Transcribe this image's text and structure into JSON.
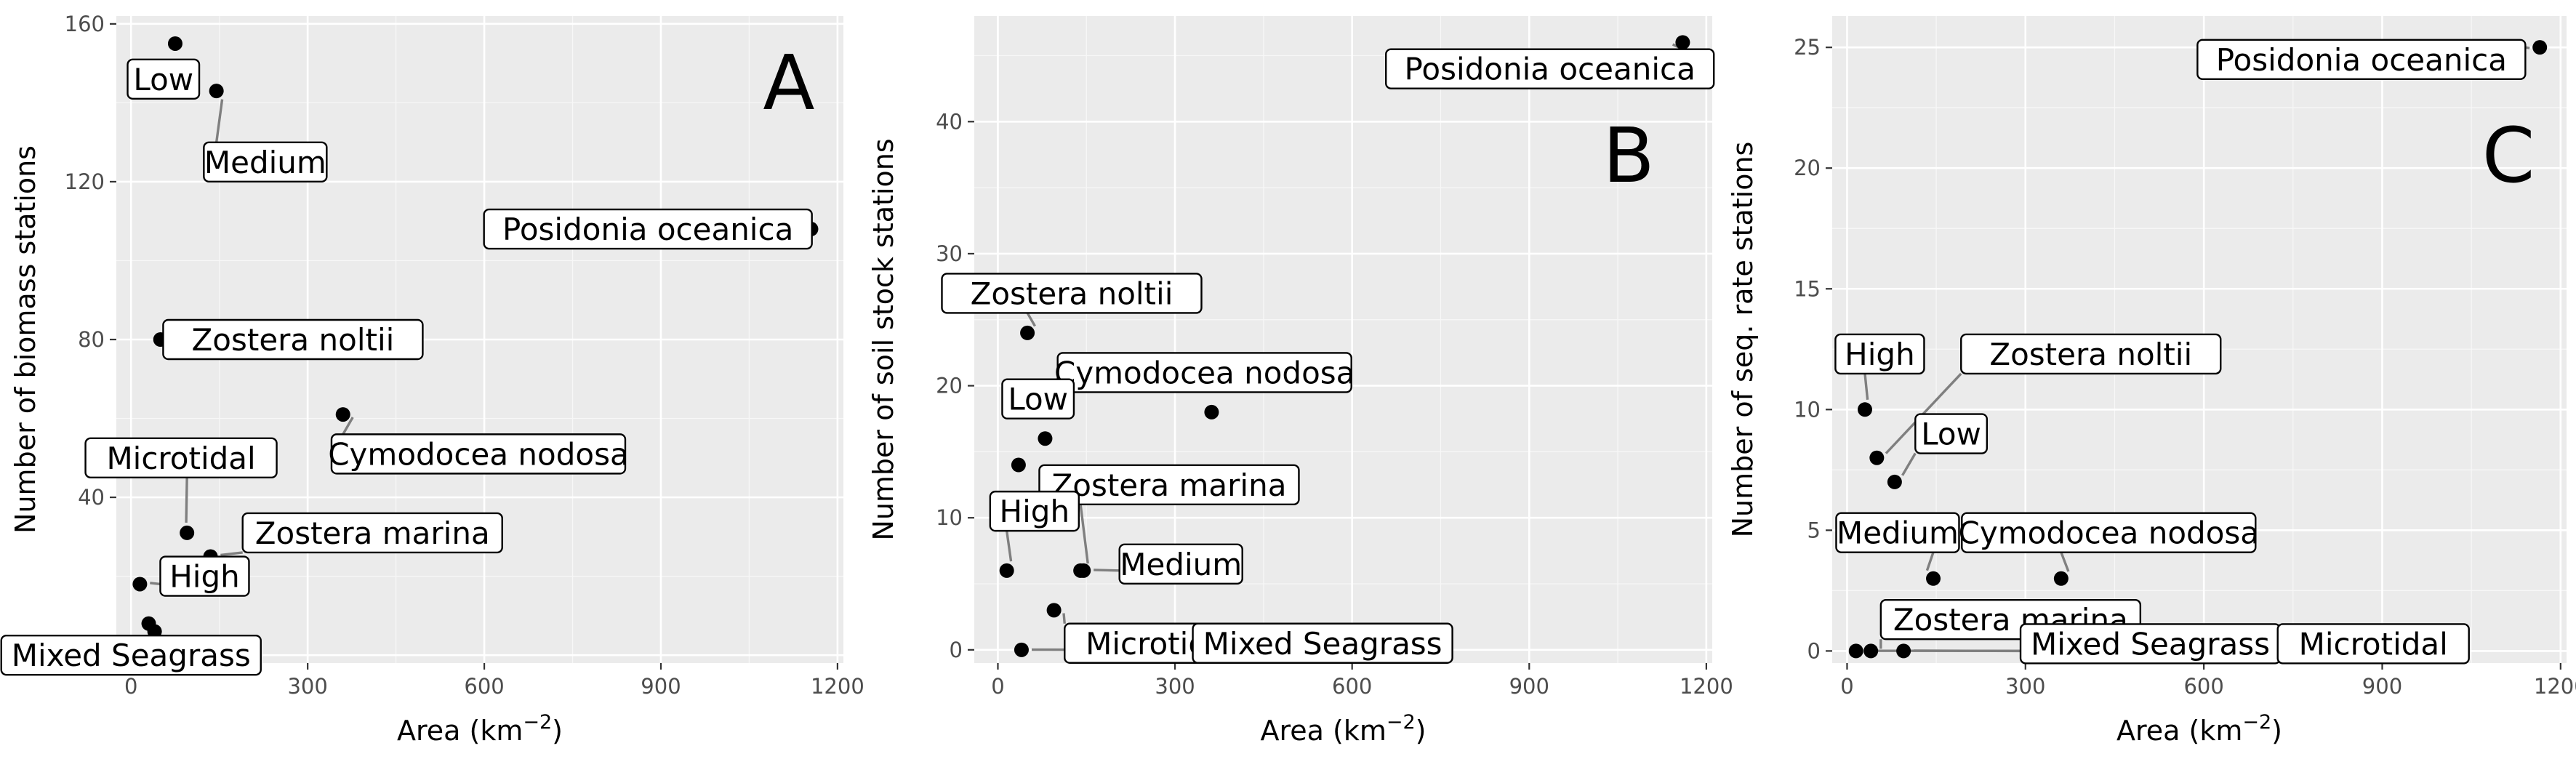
{
  "xlabel": "Area (km",
  "xlabel_exponent": "−2",
  "xlabel_close": ")",
  "chart_data": [
    {
      "type": "scatter",
      "panel_letter": "A",
      "ylabel": "Number of biomass stations",
      "xlim": [
        -25,
        1210
      ],
      "ylim": [
        -2,
        162
      ],
      "xticks": [
        0,
        300,
        600,
        900,
        1200
      ],
      "yticks": [
        0,
        40,
        80,
        120,
        160
      ],
      "grid": true,
      "points": [
        {
          "label": "Low",
          "x": 75,
          "y": 155,
          "lx": 55,
          "ly": 146
        },
        {
          "label": "Medium",
          "x": 145,
          "y": 143,
          "lx": 228,
          "ly": 125
        },
        {
          "label": "Posidonia oceanica",
          "x": 1155,
          "y": 108,
          "lx": 878,
          "ly": 108
        },
        {
          "label": "Zostera noltii",
          "x": 50,
          "y": 80,
          "lx": 275,
          "ly": 80
        },
        {
          "label": "Cymodocea nodosa",
          "x": 360,
          "y": 61,
          "lx": 590,
          "ly": 51
        },
        {
          "label": "Microtidal",
          "x": 95,
          "y": 31,
          "lx": 85,
          "ly": 50
        },
        {
          "label": "Zostera marina",
          "x": 135,
          "y": 25,
          "lx": 410,
          "ly": 31
        },
        {
          "label": "High",
          "x": 15,
          "y": 18,
          "lx": 125,
          "ly": 20
        },
        {
          "label": "Mixed Seagrass",
          "x": 30,
          "y": 8,
          "lx": 0,
          "ly": 0
        },
        {
          "label": "",
          "x": 40,
          "y": 6,
          "lx": 405,
          "ly": 8
        }
      ]
    },
    {
      "type": "scatter",
      "panel_letter": "B",
      "ylabel": "Number of soil stock stations",
      "xlim": [
        -40,
        1210
      ],
      "ylim": [
        -1,
        48
      ],
      "xticks": [
        0,
        300,
        600,
        900,
        1200
      ],
      "yticks": [
        0,
        10,
        20,
        30,
        40
      ],
      "grid": true,
      "points": [
        {
          "label": "Posidonia oceanica",
          "x": 1160,
          "y": 46,
          "lx": 935,
          "ly": 44
        },
        {
          "label": "Zostera noltii",
          "x": 50,
          "y": 24,
          "lx": 125,
          "ly": 27
        },
        {
          "label": "Cymodocea nodosa",
          "x": 362,
          "y": 18,
          "lx": 350,
          "ly": 21
        },
        {
          "label": "Low",
          "x": 80,
          "y": 16,
          "lx": 68,
          "ly": 19
        },
        {
          "label": "",
          "x": 35,
          "y": 14,
          "lx": 0,
          "ly": 0
        },
        {
          "label": "Zostera marina",
          "x": 140,
          "y": 6,
          "lx": 290,
          "ly": 12.5
        },
        {
          "label": "High",
          "x": 15,
          "y": 6,
          "lx": 62,
          "ly": 10.5
        },
        {
          "label": "Medium",
          "x": 145,
          "y": 6,
          "lx": 310,
          "ly": 6.5
        },
        {
          "label": "Microtidal",
          "x": 95,
          "y": 3,
          "lx": 275,
          "ly": 0.5
        },
        {
          "label": "Mixed Seagrass",
          "x": 40,
          "y": 0,
          "lx": 550,
          "ly": 0.5
        }
      ]
    },
    {
      "type": "scatter",
      "panel_letter": "C",
      "ylabel": "Number of seq. rate stations",
      "xlim": [
        -25,
        1210
      ],
      "ylim": [
        -0.5,
        26.3
      ],
      "xticks": [
        0,
        300,
        600,
        900,
        1200
      ],
      "yticks": [
        0,
        5,
        10,
        15,
        20,
        25
      ],
      "grid": true,
      "points": [
        {
          "label": "Posidonia oceanica",
          "x": 1165,
          "y": 25,
          "lx": 865,
          "ly": 24.5
        },
        {
          "label": "High",
          "x": 30,
          "y": 10,
          "lx": 55,
          "ly": 12.3
        },
        {
          "label": "Zostera noltii",
          "x": 50,
          "y": 8,
          "lx": 410,
          "ly": 12.3
        },
        {
          "label": "Low",
          "x": 80,
          "y": 7,
          "lx": 175,
          "ly": 9
        },
        {
          "label": "Medium",
          "x": 145,
          "y": 3,
          "lx": 85,
          "ly": 4.9
        },
        {
          "label": "Cymodocea nodosa",
          "x": 360,
          "y": 3,
          "lx": 440,
          "ly": 4.9
        },
        {
          "label": "Zostera marina",
          "x": 40,
          "y": 0,
          "lx": 275,
          "ly": 1.3
        },
        {
          "label": "Mixed Seagrass",
          "x": 95,
          "y": 0,
          "lx": 510,
          "ly": 0.3
        },
        {
          "label": "Microtidal",
          "x": 15,
          "y": 0,
          "lx": 885,
          "ly": 0.3
        }
      ]
    }
  ]
}
